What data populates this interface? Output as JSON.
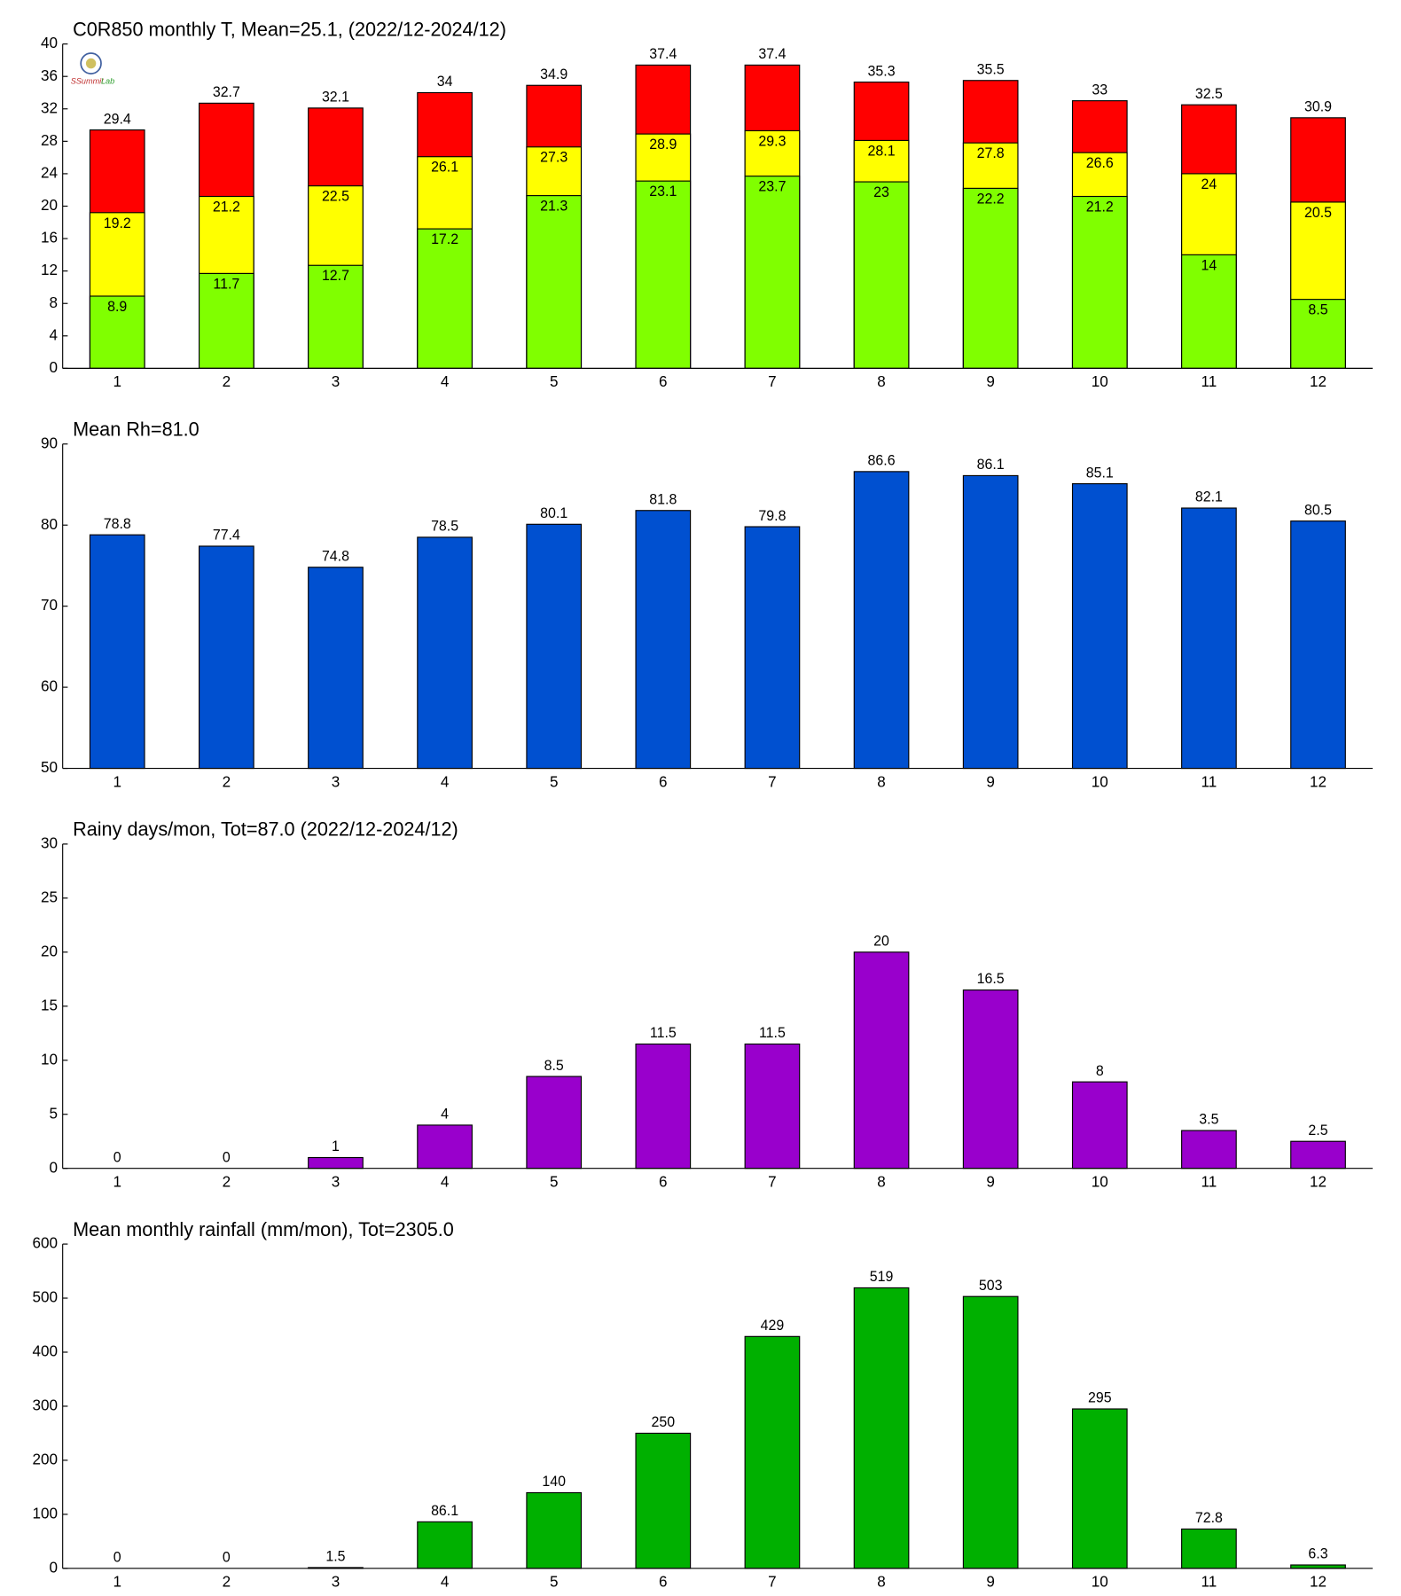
{
  "chart_data": [
    {
      "type": "bar",
      "title": "C0R850 monthly T, Mean=25.1, (2022/12-2024/12)",
      "categories": [
        1,
        2,
        3,
        4,
        5,
        6,
        7,
        8,
        9,
        10,
        11,
        12
      ],
      "series": [
        {
          "color": "#ff0000",
          "values": [
            29.4,
            32.7,
            32.1,
            34,
            34.9,
            37.4,
            37.4,
            35.3,
            35.5,
            33,
            32.5,
            30.9
          ]
        },
        {
          "color": "#ffff00",
          "values": [
            19.2,
            21.2,
            22.5,
            26.1,
            27.3,
            28.9,
            29.3,
            28.1,
            27.8,
            26.6,
            24,
            20.5
          ]
        },
        {
          "color": "#80ff00",
          "values": [
            8.9,
            11.7,
            12.7,
            17.2,
            21.3,
            23.1,
            23.7,
            23,
            22.2,
            21.2,
            14,
            8.5
          ]
        }
      ],
      "ylim": [
        0,
        40
      ],
      "yticks": [
        0,
        4,
        8,
        12,
        16,
        20,
        24,
        28,
        32,
        36,
        40
      ]
    },
    {
      "type": "bar",
      "title": "Mean Rh=81.0",
      "categories": [
        1,
        2,
        3,
        4,
        5,
        6,
        7,
        8,
        9,
        10,
        11,
        12
      ],
      "series": [
        {
          "color": "#0050d0",
          "values": [
            78.8,
            77.4,
            74.8,
            78.5,
            80.1,
            81.8,
            79.8,
            86.6,
            86.1,
            85.1,
            82.1,
            80.5
          ]
        }
      ],
      "ylim": [
        50,
        90
      ],
      "yticks": [
        50,
        60,
        70,
        80,
        90
      ]
    },
    {
      "type": "bar",
      "title": "Rainy days/mon, Tot=87.0 (2022/12-2024/12)",
      "categories": [
        1,
        2,
        3,
        4,
        5,
        6,
        7,
        8,
        9,
        10,
        11,
        12
      ],
      "series": [
        {
          "color": "#9900cc",
          "values": [
            0,
            0,
            1,
            4,
            8.5,
            11.5,
            11.5,
            20,
            16.5,
            8,
            3.5,
            2.5
          ]
        }
      ],
      "ylim": [
        0,
        30
      ],
      "yticks": [
        0,
        5,
        10,
        15,
        20,
        25,
        30
      ]
    },
    {
      "type": "bar",
      "title": "Mean monthly rainfall (mm/mon), Tot=2305.0",
      "categories": [
        1,
        2,
        3,
        4,
        5,
        6,
        7,
        8,
        9,
        10,
        11,
        12
      ],
      "series": [
        {
          "color": "#00b000",
          "values": [
            0,
            0,
            1.5,
            86.1,
            140,
            250,
            429,
            519,
            503,
            295,
            72.8,
            6.3
          ]
        }
      ],
      "ylim": [
        0,
        600
      ],
      "yticks": [
        0,
        100,
        200,
        300,
        400,
        500,
        600
      ]
    }
  ]
}
